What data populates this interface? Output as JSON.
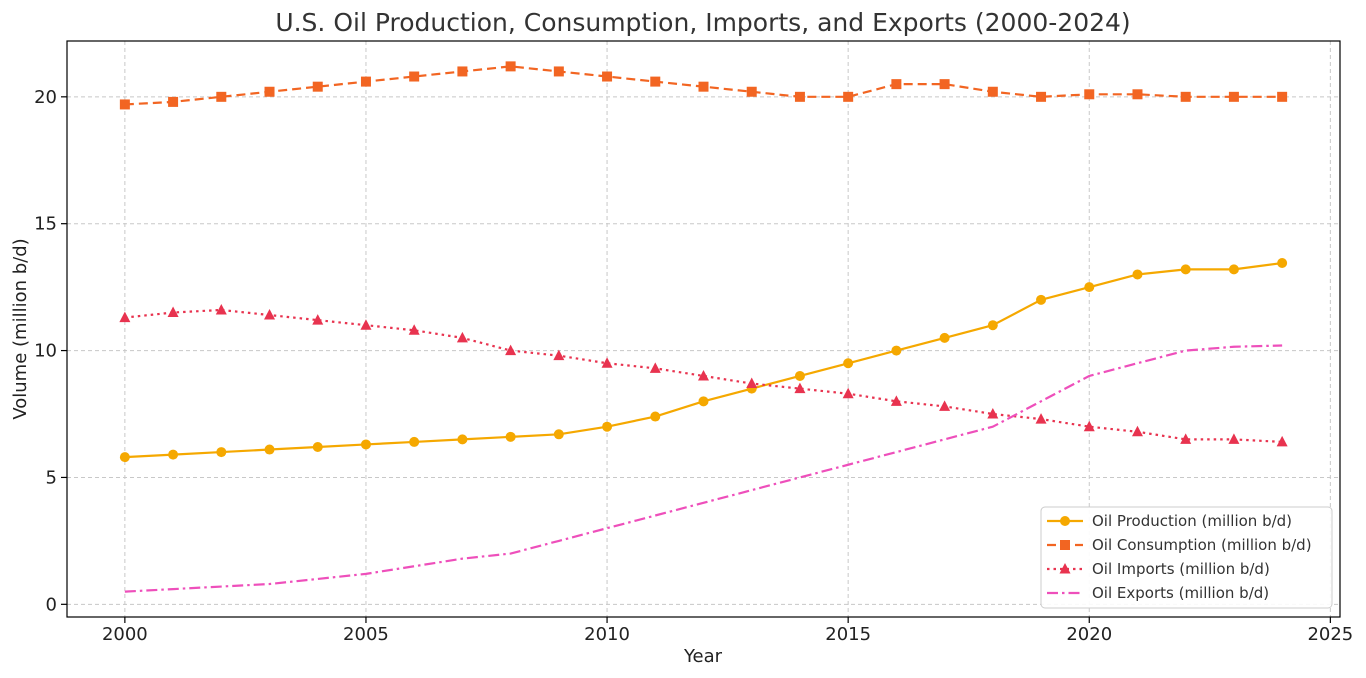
{
  "chart_data": {
    "type": "line",
    "title": "U.S. Oil Production, Consumption, Imports, and Exports (2000-2024)",
    "xlabel": "Year",
    "ylabel": "Volume (million b/d)",
    "xlim": [
      1998.8,
      2025.2
    ],
    "ylim": [
      -0.5,
      22.2
    ],
    "xticks": [
      2000,
      2005,
      2010,
      2015,
      2020,
      2025
    ],
    "xtick_labels": [
      "2000",
      "2005",
      "2010",
      "2015",
      "2020",
      "2025"
    ],
    "yticks": [
      0,
      5,
      10,
      15,
      20
    ],
    "ytick_labels": [
      "0",
      "5",
      "10",
      "15",
      "20"
    ],
    "grid": true,
    "legend_position": "bottom-right",
    "x": [
      2000,
      2001,
      2002,
      2003,
      2004,
      2005,
      2006,
      2007,
      2008,
      2009,
      2010,
      2011,
      2012,
      2013,
      2014,
      2015,
      2016,
      2017,
      2018,
      2019,
      2020,
      2021,
      2022,
      2023,
      2024
    ],
    "series": [
      {
        "name": "Oil Production (million b/d)",
        "color": "#f5a800",
        "style": "solid",
        "marker": "circle",
        "values": [
          5.8,
          5.9,
          6.0,
          6.1,
          6.2,
          6.3,
          6.4,
          6.5,
          6.6,
          6.7,
          7.0,
          7.4,
          8.0,
          8.5,
          9.0,
          9.5,
          10.0,
          10.5,
          11.0,
          12.0,
          12.5,
          13.0,
          13.2,
          13.2,
          13.45
        ]
      },
      {
        "name": "Oil Consumption (million b/d)",
        "color": "#f26522",
        "style": "dashed",
        "marker": "square",
        "values": [
          19.7,
          19.8,
          20.0,
          20.2,
          20.4,
          20.6,
          20.8,
          21.0,
          21.2,
          21.0,
          20.8,
          20.6,
          20.4,
          20.2,
          20.0,
          20.0,
          20.5,
          20.5,
          20.2,
          20.0,
          20.1,
          20.1,
          20.0,
          20.0,
          20.0
        ]
      },
      {
        "name": "Oil Imports (million b/d)",
        "color": "#e8334f",
        "style": "dotted",
        "marker": "triangle",
        "values": [
          11.3,
          11.5,
          11.6,
          11.4,
          11.2,
          11.0,
          10.8,
          10.5,
          10.0,
          9.8,
          9.5,
          9.3,
          9.0,
          8.7,
          8.5,
          8.3,
          8.0,
          7.8,
          7.5,
          7.3,
          7.0,
          6.8,
          6.5,
          6.5,
          6.4
        ]
      },
      {
        "name": "Oil Exports (million b/d)",
        "color": "#ee4fbb",
        "style": "dashdot",
        "marker": "none",
        "values": [
          0.5,
          0.6,
          0.7,
          0.8,
          1.0,
          1.2,
          1.5,
          1.8,
          2.0,
          2.5,
          3.0,
          3.5,
          4.0,
          4.5,
          5.0,
          5.5,
          6.0,
          6.5,
          7.0,
          8.0,
          9.0,
          9.5,
          10.0,
          10.15,
          10.2
        ]
      }
    ]
  }
}
